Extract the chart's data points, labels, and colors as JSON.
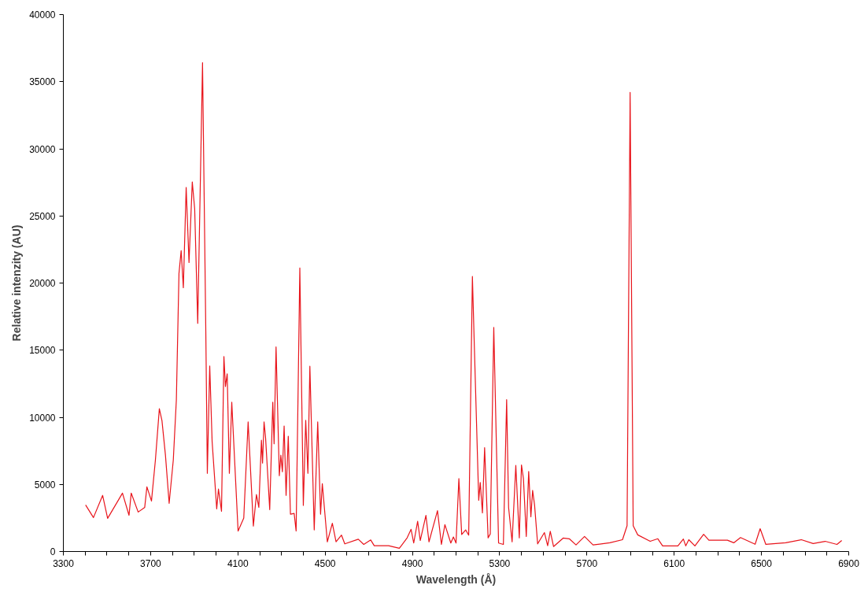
{
  "chart_data": {
    "type": "line",
    "xlabel": "Wavelength (Å)",
    "ylabel": "Relative intenzity (AU)",
    "xlim": [
      3300,
      6900
    ],
    "ylim": [
      0,
      40000
    ],
    "xticks": [
      3300,
      {
        "value": 3400,
        "label": null
      },
      {
        "value": 3500,
        "label": null
      },
      {
        "value": 3600,
        "label": null
      },
      3700,
      {
        "value": 3800,
        "label": null
      },
      {
        "value": 3900,
        "label": null
      },
      {
        "value": 4000,
        "label": null
      },
      4100,
      {
        "value": 4200,
        "label": null
      },
      {
        "value": 4300,
        "label": null
      },
      {
        "value": 4400,
        "label": null
      },
      4500,
      {
        "value": 4600,
        "label": null
      },
      {
        "value": 4700,
        "label": null
      },
      {
        "value": 4800,
        "label": null
      },
      4900,
      {
        "value": 5000,
        "label": null
      },
      {
        "value": 5100,
        "label": null
      },
      {
        "value": 5200,
        "label": null
      },
      5300,
      {
        "value": 5400,
        "label": null
      },
      {
        "value": 5500,
        "label": null
      },
      {
        "value": 5600,
        "label": null
      },
      5700,
      {
        "value": 5800,
        "label": null
      },
      {
        "value": 5900,
        "label": null
      },
      {
        "value": 6000,
        "label": null
      },
      6100,
      {
        "value": 6200,
        "label": null
      },
      {
        "value": 6300,
        "label": null
      },
      {
        "value": 6400,
        "label": null
      },
      6500,
      {
        "value": 6600,
        "label": null
      },
      {
        "value": 6700,
        "label": null
      },
      {
        "value": 6800,
        "label": null
      },
      6900
    ],
    "yticks": [
      0,
      5000,
      10000,
      15000,
      20000,
      25000,
      30000,
      35000,
      40000
    ],
    "grid": false,
    "marker": "none",
    "line_style": "solid",
    "series": [
      {
        "color": "#e8141b",
        "x": [
          3402,
          3438,
          3480,
          3503,
          3571,
          3601,
          3611,
          3643,
          3673,
          3683,
          3704,
          3722,
          3740,
          3752,
          3768,
          3785,
          3804,
          3818,
          3830,
          3840,
          3850,
          3863,
          3876,
          3891,
          3902,
          3916,
          3938,
          3953,
          3960,
          3971,
          3982,
          4003,
          4011,
          4025,
          4036,
          4043,
          4051,
          4061,
          4072,
          4101,
          4127,
          4147,
          4171,
          4185,
          4196,
          4208,
          4213,
          4220,
          4227,
          4246,
          4260,
          4266,
          4275,
          4290,
          4297,
          4304,
          4312,
          4321,
          4331,
          4341,
          4358,
          4367,
          4384,
          4400,
          4411,
          4421,
          4430,
          4450,
          4466,
          4479,
          4487,
          4510,
          4533,
          4550,
          4575,
          4590,
          4652,
          4677,
          4709,
          4725,
          4791,
          4840,
          4876,
          4894,
          4906,
          4924,
          4936,
          4962,
          4976,
          5015,
          5033,
          5049,
          5076,
          5088,
          5100,
          5113,
          5126,
          5144,
          5158,
          5175,
          5184,
          5204,
          5211,
          5221,
          5231,
          5247,
          5257,
          5273,
          5295,
          5317,
          5332,
          5341,
          5357,
          5374,
          5390,
          5400,
          5409,
          5422,
          5433,
          5443,
          5451,
          5460,
          5474,
          5505,
          5520,
          5532,
          5547,
          5591,
          5619,
          5650,
          5689,
          5728,
          5805,
          5863,
          5884,
          5898,
          5912,
          5933,
          5990,
          6025,
          6047,
          6117,
          6142,
          6153,
          6167,
          6195,
          6235,
          6259,
          6344,
          6373,
          6404,
          6471,
          6494,
          6520,
          6611,
          6683,
          6737,
          6792,
          6846,
          6868
        ],
        "values": [
          3470,
          2530,
          4180,
          2470,
          4350,
          2700,
          4350,
          2940,
          3290,
          4820,
          3760,
          6820,
          10640,
          9760,
          7180,
          3590,
          6820,
          11290,
          20710,
          22410,
          19650,
          27120,
          21530,
          27530,
          25530,
          17000,
          36410,
          16410,
          5820,
          13820,
          8180,
          3180,
          4650,
          3000,
          14530,
          12290,
          13240,
          5820,
          11120,
          1530,
          2490,
          9650,
          1900,
          4240,
          3290,
          8290,
          6590,
          9650,
          8470,
          3120,
          11120,
          8020,
          15240,
          5650,
          7180,
          5940,
          9350,
          4180,
          8590,
          2780,
          2840,
          1530,
          21120,
          3430,
          9780,
          5820,
          13800,
          1610,
          9650,
          2780,
          5060,
          720,
          2100,
          720,
          1220,
          570,
          920,
          530,
          860,
          430,
          430,
          240,
          1020,
          1650,
          630,
          2250,
          820,
          2690,
          720,
          3040,
          530,
          2000,
          630,
          1080,
          630,
          5430,
          1270,
          1610,
          1220,
          20490,
          15240,
          3820,
          5140,
          2880,
          7740,
          1020,
          1310,
          16690,
          630,
          530,
          11310,
          3270,
          720,
          6410,
          1020,
          6450,
          5430,
          1120,
          5960,
          2590,
          4550,
          3470,
          570,
          1410,
          430,
          1510,
          370,
          1000,
          950,
          490,
          1120,
          490,
          650,
          880,
          1920,
          34200,
          1920,
          1240,
          760,
          950,
          420,
          420,
          930,
          420,
          880,
          420,
          1280,
          840,
          840,
          650,
          1040,
          540,
          1700,
          530,
          650,
          880,
          590,
          760,
          530,
          820
        ]
      }
    ]
  }
}
